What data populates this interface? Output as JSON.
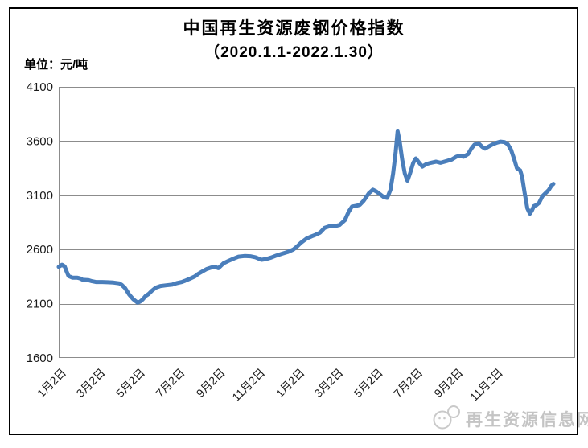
{
  "page": {
    "watermark": "再生资源信息网"
  },
  "chart": {
    "title": "中国再生资源废钢价格指数",
    "subtitle": "（2020.1.1-2022.1.30）",
    "unit_label": "单位：元/吨"
  },
  "colors": {
    "line": "#4a7ebb",
    "grid": "#8c8c8c",
    "axis_text": "#1a1a1a",
    "frame_border": "#000000",
    "watermark": "#c4c4c4"
  },
  "chart_data": {
    "type": "line",
    "title": "中国再生资源废钢价格指数（2020.1.1-2022.1.30）",
    "xlabel": "",
    "ylabel": "元/吨",
    "ylim": [
      1600,
      4100
    ],
    "y_ticks": [
      1600,
      2100,
      2600,
      3100,
      3600,
      4100
    ],
    "x_range": [
      "2020-01-02",
      "2022-01-30"
    ],
    "x_ticks": [
      {
        "date": "2020-01-02",
        "label": "1月2日"
      },
      {
        "date": "2020-03-02",
        "label": "3月2日"
      },
      {
        "date": "2020-05-02",
        "label": "5月2日"
      },
      {
        "date": "2020-07-02",
        "label": "7月2日"
      },
      {
        "date": "2020-09-02",
        "label": "9月2日"
      },
      {
        "date": "2020-11-02",
        "label": "11月2日"
      },
      {
        "date": "2021-01-02",
        "label": "1月2日"
      },
      {
        "date": "2021-03-02",
        "label": "3月2日"
      },
      {
        "date": "2021-05-02",
        "label": "5月2日"
      },
      {
        "date": "2021-07-02",
        "label": "7月2日"
      },
      {
        "date": "2021-09-02",
        "label": "9月2日"
      },
      {
        "date": "2021-11-02",
        "label": "11月2日"
      }
    ],
    "grid": true,
    "legend_position": "none",
    "line_color": "#4a7ebb",
    "points": [
      [
        "2020-01-02",
        2440
      ],
      [
        "2020-01-07",
        2460
      ],
      [
        "2020-01-11",
        2445
      ],
      [
        "2020-01-14",
        2400
      ],
      [
        "2020-01-17",
        2355
      ],
      [
        "2020-01-23",
        2340
      ],
      [
        "2020-01-30",
        2340
      ],
      [
        "2020-02-03",
        2335
      ],
      [
        "2020-02-08",
        2320
      ],
      [
        "2020-02-16",
        2318
      ],
      [
        "2020-02-22",
        2308
      ],
      [
        "2020-02-28",
        2300
      ],
      [
        "2020-03-08",
        2300
      ],
      [
        "2020-03-17",
        2298
      ],
      [
        "2020-03-26",
        2295
      ],
      [
        "2020-04-04",
        2288
      ],
      [
        "2020-04-08",
        2272
      ],
      [
        "2020-04-13",
        2243
      ],
      [
        "2020-04-19",
        2185
      ],
      [
        "2020-04-25",
        2143
      ],
      [
        "2020-05-02",
        2110
      ],
      [
        "2020-05-06",
        2120
      ],
      [
        "2020-05-10",
        2140
      ],
      [
        "2020-05-14",
        2170
      ],
      [
        "2020-05-19",
        2190
      ],
      [
        "2020-05-24",
        2220
      ],
      [
        "2020-05-30",
        2248
      ],
      [
        "2020-06-06",
        2263
      ],
      [
        "2020-06-15",
        2270
      ],
      [
        "2020-06-24",
        2276
      ],
      [
        "2020-07-01",
        2290
      ],
      [
        "2020-07-09",
        2300
      ],
      [
        "2020-07-14",
        2312
      ],
      [
        "2020-07-21",
        2330
      ],
      [
        "2020-07-29",
        2352
      ],
      [
        "2020-08-03",
        2375
      ],
      [
        "2020-08-10",
        2400
      ],
      [
        "2020-08-16",
        2420
      ],
      [
        "2020-08-23",
        2434
      ],
      [
        "2020-08-29",
        2440
      ],
      [
        "2020-09-03",
        2428
      ],
      [
        "2020-09-11",
        2474
      ],
      [
        "2020-09-18",
        2494
      ],
      [
        "2020-09-27",
        2518
      ],
      [
        "2020-10-04",
        2534
      ],
      [
        "2020-10-13",
        2540
      ],
      [
        "2020-10-22",
        2538
      ],
      [
        "2020-10-30",
        2528
      ],
      [
        "2020-11-08",
        2505
      ],
      [
        "2020-11-15",
        2512
      ],
      [
        "2020-11-23",
        2526
      ],
      [
        "2020-12-01",
        2544
      ],
      [
        "2020-12-09",
        2560
      ],
      [
        "2020-12-18",
        2576
      ],
      [
        "2020-12-27",
        2600
      ],
      [
        "2021-01-02",
        2630
      ],
      [
        "2021-01-08",
        2664
      ],
      [
        "2021-01-16",
        2700
      ],
      [
        "2021-01-24",
        2722
      ],
      [
        "2021-01-30",
        2736
      ],
      [
        "2021-02-06",
        2756
      ],
      [
        "2021-02-13",
        2800
      ],
      [
        "2021-02-20",
        2814
      ],
      [
        "2021-03-01",
        2816
      ],
      [
        "2021-03-08",
        2826
      ],
      [
        "2021-03-16",
        2870
      ],
      [
        "2021-03-22",
        2950
      ],
      [
        "2021-03-27",
        2996
      ],
      [
        "2021-04-02",
        3002
      ],
      [
        "2021-04-08",
        3012
      ],
      [
        "2021-04-14",
        3050
      ],
      [
        "2021-04-22",
        3120
      ],
      [
        "2021-04-28",
        3152
      ],
      [
        "2021-05-03",
        3136
      ],
      [
        "2021-05-09",
        3110
      ],
      [
        "2021-05-15",
        3082
      ],
      [
        "2021-05-20",
        3076
      ],
      [
        "2021-05-25",
        3150
      ],
      [
        "2021-05-29",
        3300
      ],
      [
        "2021-06-02",
        3500
      ],
      [
        "2021-06-05",
        3690
      ],
      [
        "2021-06-08",
        3600
      ],
      [
        "2021-06-12",
        3430
      ],
      [
        "2021-06-16",
        3300
      ],
      [
        "2021-06-20",
        3235
      ],
      [
        "2021-06-24",
        3300
      ],
      [
        "2021-06-29",
        3400
      ],
      [
        "2021-07-03",
        3440
      ],
      [
        "2021-07-08",
        3400
      ],
      [
        "2021-07-13",
        3365
      ],
      [
        "2021-07-19",
        3388
      ],
      [
        "2021-07-26",
        3400
      ],
      [
        "2021-08-03",
        3410
      ],
      [
        "2021-08-10",
        3400
      ],
      [
        "2021-08-19",
        3415
      ],
      [
        "2021-08-27",
        3430
      ],
      [
        "2021-09-03",
        3455
      ],
      [
        "2021-09-08",
        3465
      ],
      [
        "2021-09-14",
        3455
      ],
      [
        "2021-09-21",
        3480
      ],
      [
        "2021-09-26",
        3530
      ],
      [
        "2021-10-01",
        3568
      ],
      [
        "2021-10-07",
        3580
      ],
      [
        "2021-10-13",
        3545
      ],
      [
        "2021-10-17",
        3530
      ],
      [
        "2021-10-23",
        3550
      ],
      [
        "2021-10-29",
        3570
      ],
      [
        "2021-11-04",
        3585
      ],
      [
        "2021-11-10",
        3595
      ],
      [
        "2021-11-16",
        3590
      ],
      [
        "2021-11-21",
        3570
      ],
      [
        "2021-11-26",
        3520
      ],
      [
        "2021-12-01",
        3430
      ],
      [
        "2021-12-05",
        3350
      ],
      [
        "2021-12-10",
        3330
      ],
      [
        "2021-12-13",
        3270
      ],
      [
        "2021-12-17",
        3120
      ],
      [
        "2021-12-21",
        2980
      ],
      [
        "2021-12-25",
        2930
      ],
      [
        "2021-12-28",
        2960
      ],
      [
        "2021-12-31",
        3000
      ],
      [
        "2022-01-04",
        3010
      ],
      [
        "2022-01-08",
        3030
      ],
      [
        "2022-01-13",
        3090
      ],
      [
        "2022-01-18",
        3120
      ],
      [
        "2022-01-23",
        3150
      ],
      [
        "2022-01-27",
        3190
      ],
      [
        "2022-01-30",
        3205
      ]
    ]
  }
}
